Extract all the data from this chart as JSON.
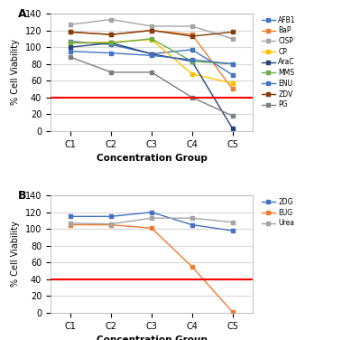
{
  "concentrations": [
    "C1",
    "C2",
    "C3",
    "C4",
    "C5"
  ],
  "panel_A": {
    "AFB1": [
      107,
      103,
      92,
      97,
      67
    ],
    "BaP": [
      118,
      115,
      120,
      115,
      50
    ],
    "CISP": [
      127,
      133,
      125,
      125,
      110
    ],
    "CP": [
      105,
      106,
      109,
      68,
      57
    ],
    "AraC": [
      100,
      105,
      92,
      83,
      3
    ],
    "MMS": [
      105,
      105,
      110,
      83,
      80
    ],
    "ENU": [
      95,
      93,
      90,
      85,
      80
    ],
    "ZDV": [
      118,
      115,
      120,
      113,
      118
    ],
    "PG": [
      88,
      70,
      70,
      40,
      18
    ]
  },
  "panel_B": {
    "2DG": [
      115,
      115,
      120,
      105,
      98
    ],
    "EUG": [
      105,
      105,
      101,
      55,
      1
    ],
    "Urea": [
      107,
      106,
      113,
      113,
      108
    ]
  },
  "panel_A_colors": {
    "AFB1": "#4472C4",
    "BaP": "#ED7D31",
    "CISP": "#A5A5A5",
    "CP": "#FFC000",
    "AraC": "#264478",
    "MMS": "#70AD47",
    "ENU": "#4472C4",
    "ZDV": "#843C0C",
    "PG": "#7F7F7F"
  },
  "panel_B_colors": {
    "2DG": "#4472C4",
    "EUG": "#ED7D31",
    "Urea": "#A5A5A5"
  },
  "threshold": 40,
  "threshold_color": "#FF0000",
  "ylim": [
    0,
    140
  ],
  "yticks": [
    0,
    20,
    40,
    60,
    80,
    100,
    120,
    140
  ],
  "xlabel": "Concentration Group",
  "ylabel": "% Cell Viability",
  "bg_color": "#FFFFFF",
  "grid_color": "#D9D9D9"
}
